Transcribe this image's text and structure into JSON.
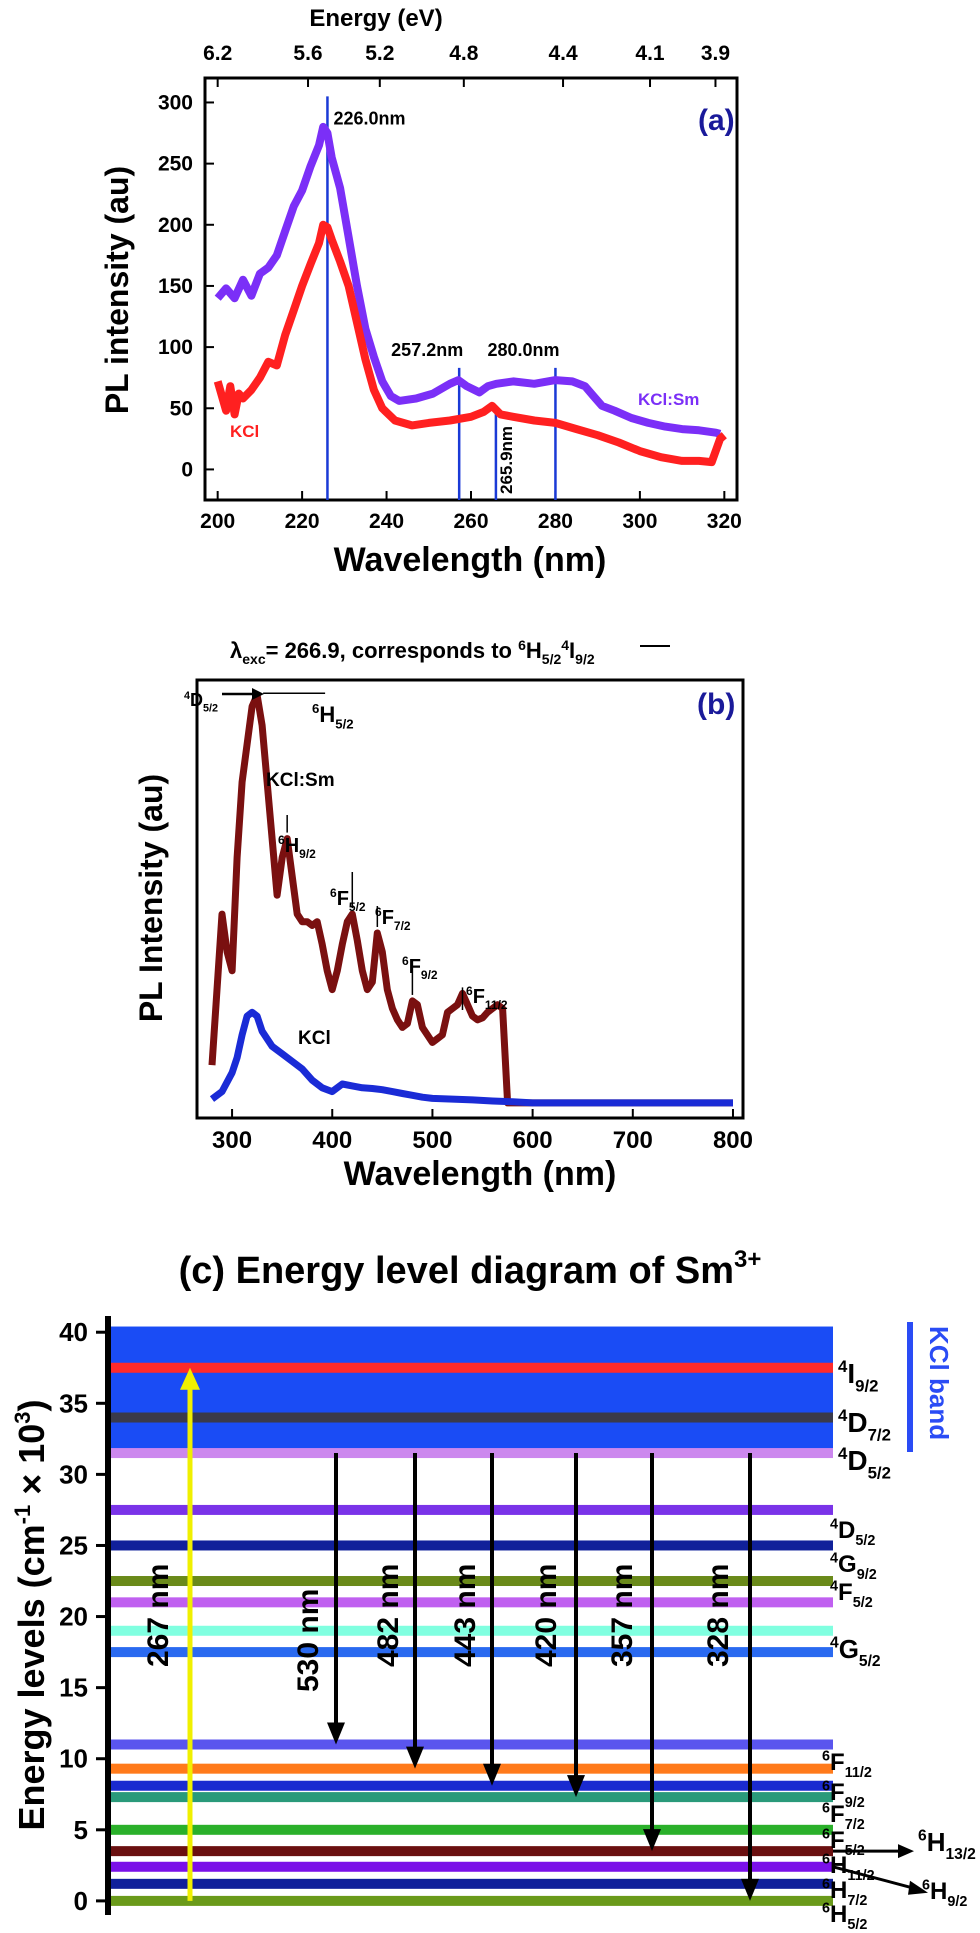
{
  "chart_data": [
    {
      "panel": "(a)",
      "type": "line",
      "top_axis_title": "Energy (eV)",
      "top_ticks": [
        "6.2",
        "5.6",
        "5.2",
        "4.8",
        "4.4",
        "4.1",
        "3.9"
      ],
      "top_tick_wavelengths": [
        200,
        221.4,
        238.4,
        258.3,
        281.8,
        302.4,
        317.9
      ],
      "xlabel": "Wavelength (nm)",
      "ylabel": "PL intensity (au)",
      "xlim": [
        197,
        323
      ],
      "ylim": [
        -25,
        320
      ],
      "xticks": [
        200,
        220,
        240,
        260,
        280,
        300,
        320
      ],
      "yticks": [
        0,
        50,
        100,
        150,
        200,
        250,
        300
      ],
      "series": [
        {
          "name": "KCl:Sm",
          "label": "KCl:Sm",
          "color": "#7b2ff7",
          "points": [
            [
              200,
              140
            ],
            [
              202,
              148
            ],
            [
              204,
              140
            ],
            [
              206,
              155
            ],
            [
              208,
              142
            ],
            [
              210,
              160
            ],
            [
              212,
              165
            ],
            [
              214,
              175
            ],
            [
              216,
              195
            ],
            [
              218,
              215
            ],
            [
              220,
              228
            ],
            [
              222,
              248
            ],
            [
              224,
              265
            ],
            [
              225,
              280
            ],
            [
              226,
              275
            ],
            [
              227,
              255
            ],
            [
              229,
              230
            ],
            [
              231,
              190
            ],
            [
              233,
              150
            ],
            [
              235,
              115
            ],
            [
              237,
              92
            ],
            [
              239,
              72
            ],
            [
              241,
              60
            ],
            [
              243,
              56
            ],
            [
              247,
              58
            ],
            [
              251,
              62
            ],
            [
              255,
              70
            ],
            [
              257,
              73
            ],
            [
              259,
              68
            ],
            [
              262,
              63
            ],
            [
              264,
              68
            ],
            [
              266,
              70
            ],
            [
              270,
              72
            ],
            [
              275,
              70
            ],
            [
              280,
              73
            ],
            [
              284,
              72
            ],
            [
              287,
              68
            ],
            [
              289,
              60
            ],
            [
              291,
              52
            ],
            [
              294,
              48
            ],
            [
              298,
              42
            ],
            [
              302,
              38
            ],
            [
              306,
              35
            ],
            [
              310,
              33
            ],
            [
              314,
              32
            ],
            [
              318,
              30
            ],
            [
              319,
              29
            ]
          ]
        },
        {
          "name": "KCl",
          "label": "KCl",
          "color": "#ff2020",
          "points": [
            [
              200,
              72
            ],
            [
              201,
              60
            ],
            [
              202,
              48
            ],
            [
              203,
              68
            ],
            [
              204,
              45
            ],
            [
              205,
              62
            ],
            [
              206,
              58
            ],
            [
              208,
              65
            ],
            [
              210,
              75
            ],
            [
              212,
              88
            ],
            [
              214,
              85
            ],
            [
              216,
              110
            ],
            [
              218,
              130
            ],
            [
              220,
              150
            ],
            [
              222,
              168
            ],
            [
              224,
              185
            ],
            [
              225,
              200
            ],
            [
              226,
              198
            ],
            [
              227,
              188
            ],
            [
              229,
              170
            ],
            [
              231,
              150
            ],
            [
              233,
              120
            ],
            [
              235,
              90
            ],
            [
              237,
              65
            ],
            [
              239,
              50
            ],
            [
              242,
              40
            ],
            [
              246,
              36
            ],
            [
              250,
              38
            ],
            [
              255,
              40
            ],
            [
              260,
              43
            ],
            [
              263,
              47
            ],
            [
              265,
              52
            ],
            [
              267,
              45
            ],
            [
              270,
              43
            ],
            [
              275,
              40
            ],
            [
              280,
              38
            ],
            [
              285,
              33
            ],
            [
              290,
              28
            ],
            [
              295,
              22
            ],
            [
              300,
              15
            ],
            [
              305,
              10
            ],
            [
              310,
              7
            ],
            [
              314,
              7
            ],
            [
              317,
              6
            ],
            [
              319,
              25
            ],
            [
              320,
              28
            ]
          ]
        }
      ],
      "peak_lines": [
        {
          "x": 226.0,
          "label": "226.0nm"
        },
        {
          "x": 257.2,
          "label": "257.2nm"
        },
        {
          "x": 265.9,
          "label": "265.9nm"
        },
        {
          "x": 280.0,
          "label": "280.0nm"
        }
      ]
    },
    {
      "panel": "(b)",
      "type": "line",
      "title_prefix": "λ",
      "title_sub": "exc",
      "title_mid": "= 266.9, corresponds to ",
      "title_t1": "6",
      "title_t2": "H",
      "title_t3": "5/2",
      "title_t4": "4",
      "title_t5": "I",
      "title_t6": "9/2",
      "xlabel": "Wavelength (nm)",
      "ylabel": "PL Intensity (au)",
      "xlim": [
        265,
        810
      ],
      "ylim": [
        -40,
        1120
      ],
      "xticks": [
        300,
        400,
        500,
        600,
        700,
        800
      ],
      "series": [
        {
          "name": "KCl:Sm",
          "label": "KCl:Sm",
          "color": "#7a1010",
          "points": [
            [
              280,
              100
            ],
            [
              285,
              300
            ],
            [
              290,
              500
            ],
            [
              295,
              400
            ],
            [
              300,
              350
            ],
            [
              305,
              650
            ],
            [
              310,
              850
            ],
            [
              315,
              950
            ],
            [
              320,
              1050
            ],
            [
              325,
              1080
            ],
            [
              330,
              1000
            ],
            [
              335,
              850
            ],
            [
              340,
              700
            ],
            [
              345,
              550
            ],
            [
              350,
              650
            ],
            [
              355,
              700
            ],
            [
              360,
              600
            ],
            [
              365,
              500
            ],
            [
              370,
              480
            ],
            [
              375,
              480
            ],
            [
              380,
              470
            ],
            [
              385,
              480
            ],
            [
              390,
              420
            ],
            [
              395,
              350
            ],
            [
              400,
              300
            ],
            [
              405,
              350
            ],
            [
              410,
              420
            ],
            [
              415,
              480
            ],
            [
              420,
              500
            ],
            [
              425,
              430
            ],
            [
              430,
              350
            ],
            [
              435,
              300
            ],
            [
              440,
              320
            ],
            [
              445,
              450
            ],
            [
              450,
              400
            ],
            [
              455,
              300
            ],
            [
              460,
              250
            ],
            [
              465,
              220
            ],
            [
              470,
              200
            ],
            [
              475,
              210
            ],
            [
              480,
              270
            ],
            [
              485,
              260
            ],
            [
              490,
              200
            ],
            [
              495,
              180
            ],
            [
              500,
              160
            ],
            [
              505,
              170
            ],
            [
              510,
              180
            ],
            [
              515,
              240
            ],
            [
              520,
              250
            ],
            [
              525,
              260
            ],
            [
              530,
              290
            ],
            [
              535,
              260
            ],
            [
              540,
              230
            ],
            [
              545,
              220
            ],
            [
              550,
              225
            ],
            [
              555,
              240
            ],
            [
              560,
              250
            ],
            [
              565,
              260
            ],
            [
              570,
              250
            ],
            [
              575,
              0
            ],
            [
              580,
              0
            ],
            [
              600,
              0
            ],
            [
              650,
              0
            ],
            [
              700,
              0
            ],
            [
              750,
              0
            ],
            [
              800,
              0
            ]
          ]
        },
        {
          "name": "KCl",
          "label": "KCl",
          "color": "#1a2bd6",
          "points": [
            [
              280,
              10
            ],
            [
              290,
              30
            ],
            [
              300,
              80
            ],
            [
              305,
              120
            ],
            [
              310,
              180
            ],
            [
              315,
              230
            ],
            [
              320,
              240
            ],
            [
              325,
              230
            ],
            [
              330,
              190
            ],
            [
              340,
              150
            ],
            [
              350,
              130
            ],
            [
              360,
              110
            ],
            [
              370,
              90
            ],
            [
              380,
              60
            ],
            [
              390,
              40
            ],
            [
              400,
              30
            ],
            [
              410,
              50
            ],
            [
              420,
              45
            ],
            [
              430,
              40
            ],
            [
              440,
              38
            ],
            [
              450,
              35
            ],
            [
              460,
              30
            ],
            [
              470,
              25
            ],
            [
              480,
              20
            ],
            [
              490,
              15
            ],
            [
              500,
              12
            ],
            [
              520,
              10
            ],
            [
              540,
              8
            ],
            [
              560,
              5
            ],
            [
              580,
              3
            ],
            [
              600,
              0
            ],
            [
              650,
              0
            ],
            [
              700,
              0
            ],
            [
              750,
              0
            ],
            [
              800,
              0
            ]
          ]
        }
      ],
      "annotations": [
        {
          "main": "4",
          "t": "D",
          "sub": "5/2",
          "note": "arrow"
        },
        {
          "main": "6",
          "t": "H",
          "sub": "5/2"
        },
        {
          "main": "6",
          "t": "H",
          "sub": "9/2"
        },
        {
          "main": "6",
          "t": "F",
          "sub": "5/2"
        },
        {
          "main": "6",
          "t": "F",
          "sub": "7/2"
        },
        {
          "main": "6",
          "t": "F",
          "sub": "9/2"
        },
        {
          "main": "6",
          "t": "F",
          "sub": "11/2"
        }
      ]
    },
    {
      "panel": "(c)",
      "type": "diagram",
      "title": "(c) Energy level diagram of Sm",
      "title_sup": "3+",
      "ylabel_main": "Energy levels (cm",
      "ylabel_sup1": "-1",
      "ylabel_mid": " × 10",
      "ylabel_sup2": "3",
      "ylabel_end": ")",
      "ylim": [
        -0.5,
        41
      ],
      "yticks": [
        0,
        5,
        10,
        15,
        20,
        25,
        30,
        35,
        40
      ],
      "band_label": "KCl band",
      "band_range": [
        31.5,
        40.4
      ],
      "levels": [
        {
          "e": 37.5,
          "color": "#ff2a2a"
        },
        {
          "e": 34.0,
          "color": "#3a3a4a"
        },
        {
          "e": 31.5,
          "color": "#cc88ee"
        },
        {
          "e": 27.5,
          "color": "#7a33e8"
        },
        {
          "e": 25.0,
          "color": "#10209a"
        },
        {
          "e": 22.5,
          "color": "#6a8a1a"
        },
        {
          "e": 21.0,
          "color": "#c060f0"
        },
        {
          "e": 19.0,
          "color": "#80ffe0"
        },
        {
          "e": 17.5,
          "color": "#2a6af0"
        },
        {
          "e": 11.0,
          "color": "#5a55ee"
        },
        {
          "e": 9.3,
          "color": "#ff7a1a"
        },
        {
          "e": 8.1,
          "color": "#1a2ad0"
        },
        {
          "e": 7.3,
          "color": "#2a9a7a"
        },
        {
          "e": 5.0,
          "color": "#2ab02a"
        },
        {
          "e": 3.5,
          "color": "#6a1010"
        },
        {
          "e": 2.4,
          "color": "#7a10e8"
        },
        {
          "e": 1.2,
          "color": "#10209a"
        },
        {
          "e": 0.0,
          "color": "#6a9a1a"
        }
      ],
      "level_labels": [
        {
          "main": "4",
          "t": "I",
          "sub": "9/2"
        },
        {
          "main": "4",
          "t": "D",
          "sub": "7/2"
        },
        {
          "main": "4",
          "t": "D",
          "sub": "5/2"
        },
        {
          "main": "4",
          "t": "D",
          "sub": "5/2"
        },
        {
          "main": "4",
          "t": "G",
          "sub": "9/2"
        },
        {
          "main": "4",
          "t": "F",
          "sub": "5/2"
        },
        {
          "main": "4",
          "t": "G",
          "sub": "5/2"
        },
        {
          "main": "6",
          "t": "F",
          "sub": "11/2"
        },
        {
          "main": "6",
          "t": "F",
          "sub": "9/2"
        },
        {
          "main": "6",
          "t": "F",
          "sub": "7/2"
        },
        {
          "main": "6",
          "t": "F",
          "sub": "5/2"
        },
        {
          "main": "6",
          "t": "H",
          "sub": "13/2"
        },
        {
          "main": "6",
          "t": "H",
          "sub": "11/2"
        },
        {
          "main": "6",
          "t": "H",
          "sub": "9/2"
        },
        {
          "main": "6",
          "t": "H",
          "sub": "7/2"
        },
        {
          "main": "6",
          "t": "H",
          "sub": "5/2"
        }
      ],
      "excitation": {
        "label": "267 nm",
        "from": 0.0,
        "to": 37.5,
        "color": "#f0f000"
      },
      "emissions": [
        {
          "label": "530 nm",
          "from": 31.5,
          "to": 11.0
        },
        {
          "label": "482 nm",
          "from": 31.5,
          "to": 9.3
        },
        {
          "label": "443 nm",
          "from": 31.5,
          "to": 8.1
        },
        {
          "label": "420 nm",
          "from": 31.5,
          "to": 7.3
        },
        {
          "label": "357 nm",
          "from": 31.5,
          "to": 3.5
        },
        {
          "label": "328 nm",
          "from": 31.5,
          "to": 0.0
        }
      ]
    }
  ]
}
